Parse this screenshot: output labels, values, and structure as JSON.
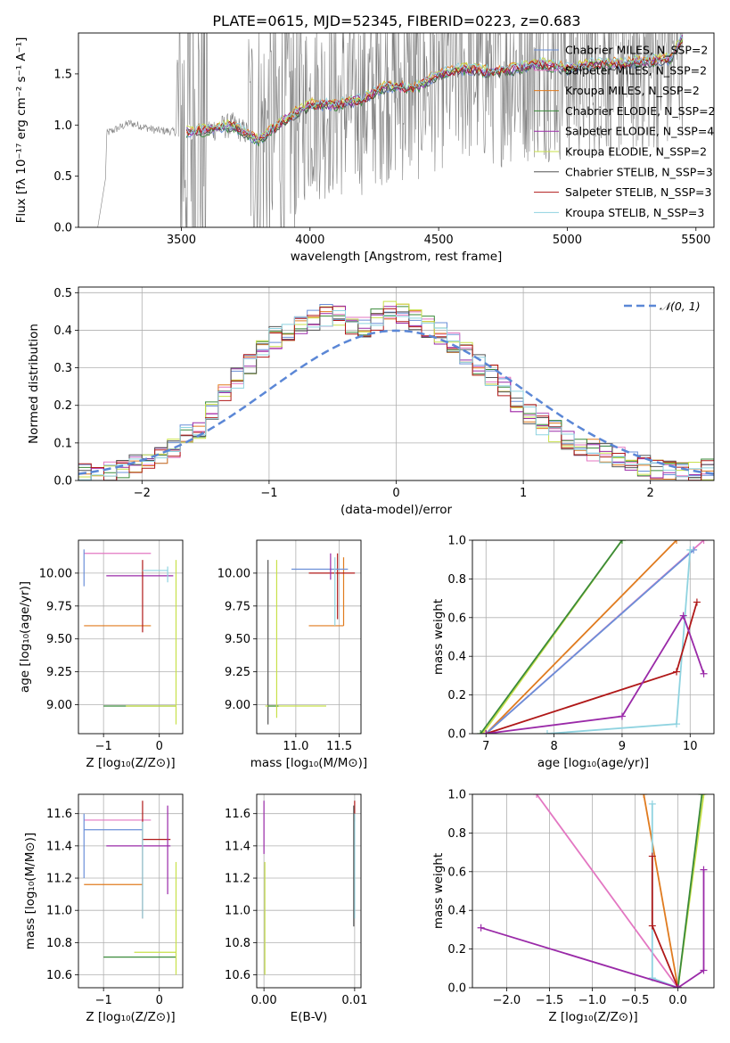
{
  "figure": {
    "title": "PLATE=0615, MJD=52345, FIBERID=0223, z=0.683"
  },
  "chart_data": [
    {
      "id": "spectrum",
      "type": "line",
      "xlabel": "wavelength [Angstrom, rest frame]",
      "ylabel": "Flux [fλ 10⁻¹⁷ erg cm⁻² s⁻¹ A⁻¹]",
      "xlim": [
        3100,
        5570
      ],
      "ylim": [
        0,
        1.9
      ],
      "xticks": [
        3500,
        4000,
        4500,
        5000,
        5500
      ],
      "yticks": [
        0.0,
        0.5,
        1.0,
        1.5
      ],
      "xtick_labels": [
        "3500",
        "4000",
        "4500",
        "5000",
        "5500"
      ],
      "ytick_labels": [
        "0.0",
        "0.5",
        "1.0",
        "1.5"
      ],
      "legend_position": "top-right",
      "legend": [
        {
          "name": "Chabrier MILES, N_SSP=2",
          "color": "#6a8fd8"
        },
        {
          "name": "Salpeter MILES, N_SSP=2",
          "color": "#e377c2"
        },
        {
          "name": "Kroupa MILES, N_SSP=2",
          "color": "#e07b1f"
        },
        {
          "name": "Chabrier ELODIE, N_SSP=2",
          "color": "#3a8a3a"
        },
        {
          "name": "Salpeter ELODIE, N_SSP=4",
          "color": "#9a2aa8"
        },
        {
          "name": "Kroupa ELODIE, N_SSP=2",
          "color": "#c8e04a"
        },
        {
          "name": "Chabrier STELIB, N_SSP=3",
          "color": "#555555"
        },
        {
          "name": "Salpeter STELIB, N_SSP=3",
          "color": "#b01818"
        },
        {
          "name": "Kroupa STELIB, N_SSP=3",
          "color": "#8fd3e0"
        }
      ],
      "observed_flux": {
        "color": "#808080",
        "coverage": [
          3175,
          5450
        ],
        "continuum_points": [
          {
            "x": 3200,
            "y": 0.0
          },
          {
            "x": 3210,
            "y": 0.92
          },
          {
            "x": 3300,
            "y": 1.02
          },
          {
            "x": 3400,
            "y": 0.95
          },
          {
            "x": 3500,
            "y": 0.93
          },
          {
            "x": 3600,
            "y": 0.95
          },
          {
            "x": 3700,
            "y": 1.0
          },
          {
            "x": 3800,
            "y": 0.85
          },
          {
            "x": 3900,
            "y": 1.05
          },
          {
            "x": 4000,
            "y": 1.2
          },
          {
            "x": 4100,
            "y": 1.2
          },
          {
            "x": 4200,
            "y": 1.25
          },
          {
            "x": 4300,
            "y": 1.38
          },
          {
            "x": 4400,
            "y": 1.35
          },
          {
            "x": 4500,
            "y": 1.5
          },
          {
            "x": 4600,
            "y": 1.55
          },
          {
            "x": 4700,
            "y": 1.52
          },
          {
            "x": 4800,
            "y": 1.55
          },
          {
            "x": 4900,
            "y": 1.6
          },
          {
            "x": 5000,
            "y": 1.55
          },
          {
            "x": 5100,
            "y": 1.6
          },
          {
            "x": 5200,
            "y": 1.6
          },
          {
            "x": 5300,
            "y": 1.62
          },
          {
            "x": 5400,
            "y": 1.65
          },
          {
            "x": 5450,
            "y": 1.85
          }
        ]
      }
    },
    {
      "id": "residuals",
      "type": "histogram",
      "xlabel": "(data-model)/error",
      "ylabel": "Normed distribution",
      "xlim": [
        -2.5,
        2.5
      ],
      "ylim": [
        0,
        0.515
      ],
      "xticks": [
        -2,
        -1,
        0,
        1,
        2
      ],
      "yticks": [
        0.0,
        0.1,
        0.2,
        0.3,
        0.4,
        0.5
      ],
      "xtick_labels": [
        "−2",
        "−1",
        "0",
        "1",
        "2"
      ],
      "ytick_labels": [
        "0.0",
        "0.1",
        "0.2",
        "0.3",
        "0.4",
        "0.5"
      ],
      "grid": true,
      "legend_position": "top-right",
      "reference_curve": {
        "name": "𝒩(0, 1)",
        "color": "#5b87d6",
        "style": "dashed"
      },
      "bin_width": 0.1,
      "bin_start": -2.5,
      "typical_heights": [
        0.02,
        0.01,
        0.02,
        0.03,
        0.05,
        0.06,
        0.07,
        0.09,
        0.12,
        0.14,
        0.19,
        0.24,
        0.27,
        0.31,
        0.35,
        0.38,
        0.4,
        0.42,
        0.43,
        0.44,
        0.44,
        0.42,
        0.41,
        0.43,
        0.45,
        0.44,
        0.43,
        0.41,
        0.39,
        0.37,
        0.34,
        0.31,
        0.28,
        0.25,
        0.21,
        0.18,
        0.15,
        0.13,
        0.11,
        0.09,
        0.08,
        0.07,
        0.06,
        0.05,
        0.04,
        0.03,
        0.03,
        0.03,
        0.02,
        0.03
      ]
    },
    {
      "id": "age-vs-Z",
      "type": "scatter",
      "xlabel": "Z [log₁₀(Z/Z⊙)]",
      "ylabel": "age  [log₁₀(age/yr)]",
      "xlim": [
        -1.45,
        0.42
      ],
      "ylim": [
        8.78,
        10.25
      ],
      "xticks": [
        -1,
        0
      ],
      "yticks": [
        9.0,
        9.25,
        9.5,
        9.75,
        10.0
      ],
      "xtick_labels": [
        "−1",
        "0"
      ],
      "ytick_labels": [
        "9.00",
        "9.25",
        "9.50",
        "9.75",
        "10.00"
      ],
      "grid": true,
      "marks": [
        {
          "color": "#e377c2",
          "x": [
            -1.35,
            -0.15
          ],
          "y": [
            10.15,
            10.15
          ]
        },
        {
          "color": "#6a8fd8",
          "x": [
            -1.35,
            -1.35
          ],
          "y": [
            9.9,
            10.18
          ]
        },
        {
          "color": "#e07b1f",
          "x": [
            -1.35,
            -0.15
          ],
          "y": [
            9.6,
            9.6
          ]
        },
        {
          "color": "#9a2aa8",
          "x": [
            -0.95,
            0.25
          ],
          "y": [
            9.98,
            9.98
          ]
        },
        {
          "color": "#3a8a3a",
          "x": [
            -1.0,
            0.3
          ],
          "y": [
            8.99,
            8.99
          ]
        },
        {
          "color": "#c8e04a",
          "x": [
            -0.6,
            0.3
          ],
          "y": [
            8.99,
            8.99
          ]
        },
        {
          "color": "#c8e04a",
          "x": [
            0.3,
            0.3
          ],
          "y": [
            8.85,
            10.1
          ]
        },
        {
          "color": "#b01818",
          "x": [
            -0.3,
            -0.3
          ],
          "y": [
            9.55,
            10.1
          ]
        },
        {
          "color": "#8fd3e0",
          "x": [
            -0.3,
            0.15
          ],
          "y": [
            10.02,
            10.02
          ]
        },
        {
          "color": "#8fd3e0",
          "x": [
            0.15,
            0.15
          ],
          "y": [
            9.93,
            10.05
          ]
        }
      ]
    },
    {
      "id": "age-vs-mass",
      "type": "scatter",
      "xlabel": "mass [log₁₀(M/M⊙)]",
      "ylabel": "",
      "xlim": [
        10.55,
        11.75
      ],
      "ylim": [
        8.78,
        10.25
      ],
      "xticks": [
        11.0,
        11.5
      ],
      "yticks": [
        9.0,
        9.25,
        9.5,
        9.75,
        10.0
      ],
      "xtick_labels": [
        "11.0",
        "11.5"
      ],
      "ytick_labels": [
        "9.00",
        "9.25",
        "9.50",
        "9.75",
        "10.00"
      ],
      "grid": true,
      "marks": [
        {
          "color": "#555555",
          "x": [
            10.68,
            10.68
          ],
          "y": [
            8.85,
            10.1
          ]
        },
        {
          "color": "#c8e04a",
          "x": [
            10.65,
            11.35
          ],
          "y": [
            8.99,
            8.99
          ]
        },
        {
          "color": "#3a8a3a",
          "x": [
            10.68,
            10.8
          ],
          "y": [
            8.99,
            8.99
          ]
        },
        {
          "color": "#c8e04a",
          "x": [
            10.78,
            10.78
          ],
          "y": [
            8.9,
            10.1
          ]
        },
        {
          "color": "#e07b1f",
          "x": [
            11.15,
            11.55
          ],
          "y": [
            9.6,
            9.6
          ]
        },
        {
          "color": "#e07b1f",
          "x": [
            11.55,
            11.55
          ],
          "y": [
            9.6,
            10.12
          ]
        },
        {
          "color": "#b01818",
          "x": [
            11.48,
            11.48
          ],
          "y": [
            9.65,
            10.15
          ]
        },
        {
          "color": "#b01818",
          "x": [
            11.15,
            11.68
          ],
          "y": [
            10.0,
            10.0
          ]
        },
        {
          "color": "#6a8fd8",
          "x": [
            10.95,
            11.6
          ],
          "y": [
            10.03,
            10.03
          ]
        },
        {
          "color": "#8fd3e0",
          "x": [
            11.45,
            11.45
          ],
          "y": [
            9.6,
            10.12
          ]
        },
        {
          "color": "#9a2aa8",
          "x": [
            11.4,
            11.4
          ],
          "y": [
            9.95,
            10.15
          ]
        }
      ]
    },
    {
      "id": "weight-vs-age",
      "type": "line",
      "xlabel": "age  [log₁₀(age/yr)]",
      "ylabel": "mass weight",
      "xlim": [
        6.8,
        10.35
      ],
      "ylim": [
        0,
        1.0
      ],
      "xticks": [
        7,
        8,
        9,
        10
      ],
      "yticks": [
        0.0,
        0.2,
        0.4,
        0.6,
        0.8,
        1.0
      ],
      "xtick_labels": [
        "7",
        "8",
        "9",
        "10"
      ],
      "ytick_labels": [
        "0.0",
        "0.2",
        "0.4",
        "0.6",
        "0.8",
        "1.0"
      ],
      "grid": true,
      "series": [
        {
          "color": "#c8e04a",
          "x": [
            6.95,
            9.0
          ],
          "y": [
            0.0,
            1.0
          ]
        },
        {
          "color": "#3a8a3a",
          "x": [
            6.92,
            9.0
          ],
          "y": [
            0.0,
            1.0
          ]
        },
        {
          "color": "#e07b1f",
          "x": [
            7.0,
            9.8
          ],
          "y": [
            0.0,
            1.0
          ]
        },
        {
          "color": "#e377c2",
          "x": [
            7.0,
            10.2
          ],
          "y": [
            0.0,
            1.0
          ]
        },
        {
          "color": "#6a8fd8",
          "x": [
            7.0,
            10.05
          ],
          "y": [
            0.0,
            0.95
          ]
        },
        {
          "color": "#8fd3e0",
          "x": [
            7.9,
            9.8,
            10.0
          ],
          "y": [
            0.0,
            0.05,
            0.95
          ]
        },
        {
          "color": "#b01818",
          "x": [
            7.0,
            9.8,
            10.1
          ],
          "y": [
            0.0,
            0.32,
            0.68
          ]
        },
        {
          "color": "#9a2aa8",
          "x": [
            7.0,
            9.0,
            9.9,
            10.2
          ],
          "y": [
            0.0,
            0.09,
            0.61,
            0.31
          ]
        }
      ]
    },
    {
      "id": "mass-vs-Z",
      "type": "scatter",
      "xlabel": "Z [log₁₀(Z/Z⊙)]",
      "ylabel": "mass [log₁₀(M/M⊙)]",
      "xlim": [
        -1.45,
        0.42
      ],
      "ylim": [
        10.52,
        11.72
      ],
      "xticks": [
        -1,
        0
      ],
      "yticks": [
        10.6,
        10.8,
        11.0,
        11.2,
        11.4,
        11.6
      ],
      "xtick_labels": [
        "−1",
        "0"
      ],
      "ytick_labels": [
        "10.6",
        "10.8",
        "11.0",
        "11.2",
        "11.4",
        "11.6"
      ],
      "grid": true,
      "marks": [
        {
          "color": "#e377c2",
          "x": [
            -1.35,
            -0.15
          ],
          "y": [
            11.56,
            11.56
          ]
        },
        {
          "color": "#6a8fd8",
          "x": [
            -1.35,
            -0.3
          ],
          "y": [
            11.5,
            11.5
          ]
        },
        {
          "color": "#6a8fd8",
          "x": [
            -1.35,
            -1.35
          ],
          "y": [
            11.2,
            11.6
          ]
        },
        {
          "color": "#9a2aa8",
          "x": [
            -0.95,
            0.2
          ],
          "y": [
            11.4,
            11.4
          ]
        },
        {
          "color": "#b01818",
          "x": [
            -0.3,
            0.2
          ],
          "y": [
            11.44,
            11.44
          ]
        },
        {
          "color": "#e07b1f",
          "x": [
            -1.35,
            -0.3
          ],
          "y": [
            11.16,
            11.16
          ]
        },
        {
          "color": "#3a8a3a",
          "x": [
            -1.0,
            0.3
          ],
          "y": [
            10.71,
            10.71
          ]
        },
        {
          "color": "#c8e04a",
          "x": [
            -0.45,
            0.3
          ],
          "y": [
            10.74,
            10.74
          ]
        },
        {
          "color": "#c8e04a",
          "x": [
            0.3,
            0.3
          ],
          "y": [
            10.6,
            11.3
          ]
        },
        {
          "color": "#b01818",
          "x": [
            -0.3,
            -0.3
          ],
          "y": [
            10.95,
            11.68
          ]
        },
        {
          "color": "#8fd3e0",
          "x": [
            -0.3,
            -0.3
          ],
          "y": [
            10.95,
            11.55
          ]
        },
        {
          "color": "#9a2aa8",
          "x": [
            0.15,
            0.15
          ],
          "y": [
            11.1,
            11.65
          ]
        }
      ]
    },
    {
      "id": "mass-vs-EBV",
      "type": "scatter",
      "xlabel": "E(B-V)",
      "ylabel": "",
      "xlim": [
        -0.0008,
        0.0107
      ],
      "ylim": [
        10.52,
        11.72
      ],
      "xticks": [
        0.0,
        0.01
      ],
      "yticks": [
        10.6,
        10.8,
        11.0,
        11.2,
        11.4,
        11.6
      ],
      "xtick_labels": [
        "0.00",
        "0.01"
      ],
      "ytick_labels": [
        "10.6",
        "10.8",
        "11.0",
        "11.2",
        "11.4",
        "11.6"
      ],
      "grid": true,
      "marks": [
        {
          "color": "#9a2aa8",
          "x": [
            0.0,
            0.0
          ],
          "y": [
            11.35,
            11.68
          ]
        },
        {
          "color": "#c8e04a",
          "x": [
            0.0001,
            0.0001
          ],
          "y": [
            10.6,
            11.3
          ]
        },
        {
          "color": "#b01818",
          "x": [
            0.01,
            0.01
          ],
          "y": [
            11.55,
            11.68
          ]
        },
        {
          "color": "#8fd3e0",
          "x": [
            0.01,
            0.01
          ],
          "y": [
            10.95,
            11.6
          ]
        },
        {
          "color": "#555555",
          "x": [
            0.0099,
            0.0099
          ],
          "y": [
            10.9,
            11.65
          ]
        }
      ]
    },
    {
      "id": "weight-vs-Z",
      "type": "line",
      "xlabel": "Z [log₁₀(Z/Z⊙)]",
      "ylabel": "mass weight",
      "xlim": [
        -2.4,
        0.42
      ],
      "ylim": [
        0,
        1.0
      ],
      "xticks": [
        -2.0,
        -1.5,
        -1.0,
        -0.5,
        0.0
      ],
      "yticks": [
        0.0,
        0.2,
        0.4,
        0.6,
        0.8,
        1.0
      ],
      "xtick_labels": [
        "−2.0",
        "−1.5",
        "−1.0",
        "−0.5",
        "0.0"
      ],
      "ytick_labels": [
        "0.0",
        "0.2",
        "0.4",
        "0.6",
        "0.8",
        "1.0"
      ],
      "grid": true,
      "series": [
        {
          "color": "#e377c2",
          "x": [
            -1.65,
            0.0
          ],
          "y": [
            1.0,
            0.0
          ]
        },
        {
          "color": "#e07b1f",
          "x": [
            -0.4,
            0.0
          ],
          "y": [
            1.0,
            0.0
          ]
        },
        {
          "color": "#c8e04a",
          "x": [
            0.0,
            0.3
          ],
          "y": [
            0.0,
            1.0
          ]
        },
        {
          "color": "#3a8a3a",
          "x": [
            0.0,
            0.28
          ],
          "y": [
            0.0,
            1.0
          ]
        },
        {
          "color": "#8fd3e0",
          "x": [
            -0.3,
            -0.3,
            0.0
          ],
          "y": [
            0.95,
            0.05,
            0.0
          ]
        },
        {
          "color": "#b01818",
          "x": [
            -0.3,
            -0.3,
            0.0
          ],
          "y": [
            0.68,
            0.32,
            0.0
          ]
        },
        {
          "color": "#9a2aa8",
          "x": [
            -2.3,
            0.0,
            0.3,
            0.3
          ],
          "y": [
            0.31,
            0.0,
            0.09,
            0.61
          ]
        }
      ]
    }
  ]
}
